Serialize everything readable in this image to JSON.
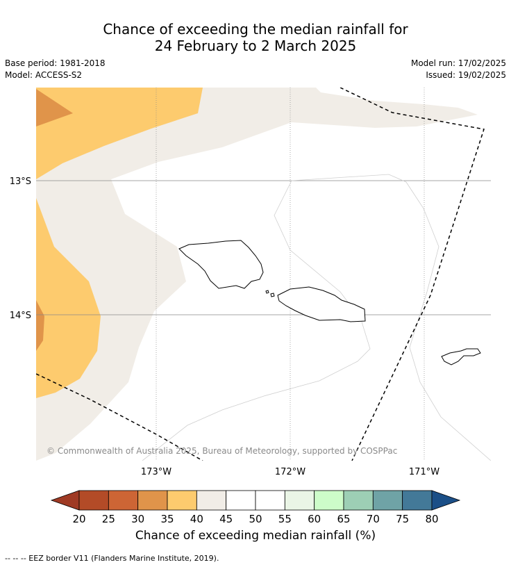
{
  "title": {
    "line1": "Chance of exceeding the median rainfall for",
    "line2": "24 February to 2 March 2025"
  },
  "meta_left": {
    "base_period": "Base period: 1981-2018",
    "model": "Model: ACCESS-S2"
  },
  "meta_right": {
    "model_run": "Model run: 17/02/2025",
    "issued": "Issued: 19/02/2025"
  },
  "map": {
    "lat_labels": [
      "13°S",
      "14°S"
    ],
    "lon_labels": [
      "173°W",
      "172°W",
      "171°W"
    ],
    "copyright": "© Commonwealth of Australia 2025, Bureau of Meteorology, supported by COSPPac",
    "colors": {
      "c20_25": "#b34b27",
      "c25_30": "#cd6535",
      "c30_35": "#e0944a",
      "c35_40": "#fdcb6e",
      "c40_45": "#f1ede7",
      "c45_55": "#ffffff",
      "c55_60": "#eaf5e6",
      "c60_65": "#cdfcc9",
      "c65_70": "#9dcfb5",
      "c70_75": "#6fa3a6",
      "c75_80": "#437998",
      "above_80": "#1b4f87",
      "below_20": "#9f3a24"
    }
  },
  "colorbar": {
    "tick_labels": [
      "20",
      "25",
      "30",
      "35",
      "40",
      "45",
      "50",
      "55",
      "60",
      "65",
      "70",
      "75",
      "80"
    ],
    "title": "Chance of exceeding median rainfall (%)"
  },
  "footnote": "--  --  -- EEZ border V11 (Flanders Marine Institute, 2019)."
}
